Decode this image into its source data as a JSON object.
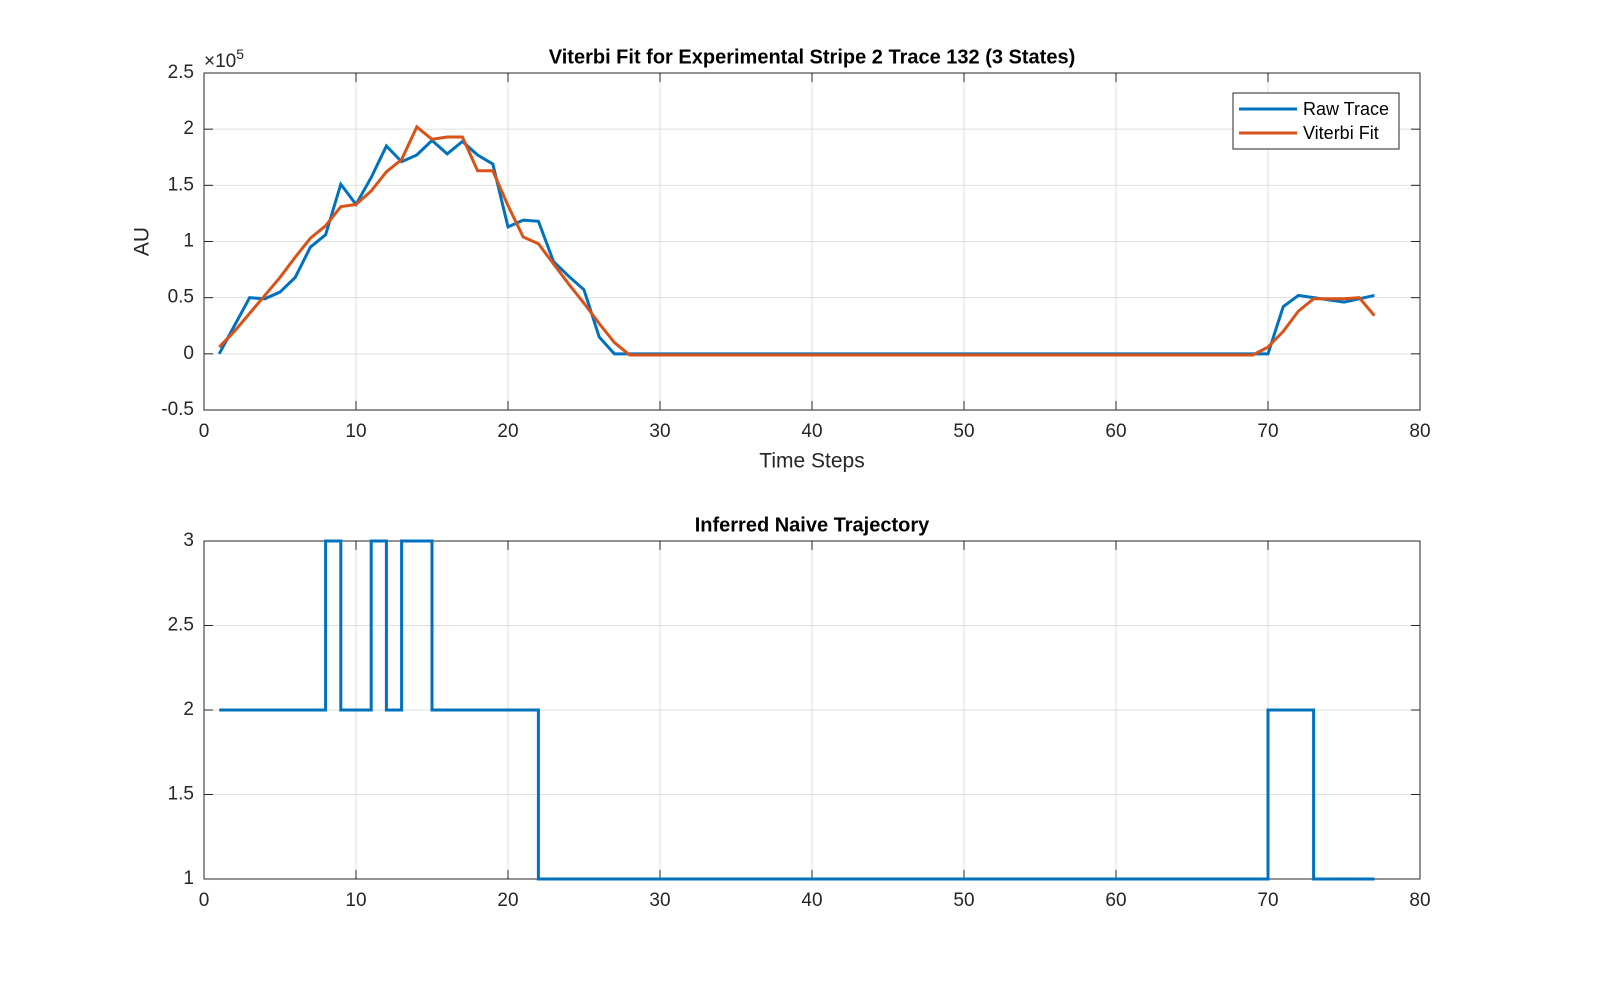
{
  "chart_data": [
    {
      "type": "line",
      "title": "Viterbi Fit for Experimental Stripe 2 Trace 132 (3 States)",
      "x_label": "Time Steps",
      "y_label": "AU",
      "y_multiplier": {
        "base": "×10",
        "power": "5"
      },
      "x": [
        1,
        2,
        3,
        4,
        5,
        6,
        7,
        8,
        9,
        10,
        11,
        12,
        13,
        14,
        15,
        16,
        17,
        18,
        19,
        20,
        21,
        22,
        23,
        24,
        25,
        26,
        27,
        28,
        29,
        30,
        31,
        32,
        33,
        34,
        35,
        36,
        37,
        38,
        39,
        40,
        41,
        42,
        43,
        44,
        45,
        46,
        47,
        48,
        49,
        50,
        51,
        52,
        53,
        54,
        55,
        56,
        57,
        58,
        59,
        60,
        61,
        62,
        63,
        64,
        65,
        66,
        67,
        68,
        69,
        70,
        71,
        72,
        73,
        74,
        75,
        76,
        77
      ],
      "series": [
        {
          "name": "Raw Trace",
          "color": "#0072bd",
          "values": [
            0,
            25000,
            50000,
            49000,
            55000,
            68000,
            95000,
            106000,
            151000,
            133000,
            157000,
            185000,
            171000,
            177000,
            190000,
            178000,
            189000,
            177000,
            169000,
            113000,
            119000,
            118000,
            82000,
            69000,
            57000,
            15000,
            0,
            0,
            0,
            0,
            0,
            0,
            0,
            0,
            0,
            0,
            0,
            0,
            0,
            0,
            0,
            0,
            0,
            0,
            0,
            0,
            0,
            0,
            0,
            0,
            0,
            0,
            0,
            0,
            0,
            0,
            0,
            0,
            0,
            0,
            0,
            0,
            0,
            0,
            0,
            0,
            0,
            0,
            0,
            0,
            42000,
            52000,
            50000,
            48000,
            46000,
            49000,
            52000
          ]
        },
        {
          "name": "Viterbi Fit",
          "color": "#d95319",
          "values": [
            6000,
            20000,
            36000,
            52000,
            68000,
            86000,
            103000,
            114000,
            131000,
            133000,
            145000,
            162000,
            173000,
            202000,
            191000,
            193000,
            193000,
            163000,
            163000,
            132000,
            104000,
            98000,
            80000,
            62000,
            45000,
            27000,
            10000,
            -1000,
            -1000,
            -1000,
            -1000,
            -1000,
            -1000,
            -1000,
            -1000,
            -1000,
            -1000,
            -1000,
            -1000,
            -1000,
            -1000,
            -1000,
            -1000,
            -1000,
            -1000,
            -1000,
            -1000,
            -1000,
            -1000,
            -1000,
            -1000,
            -1000,
            -1000,
            -1000,
            -1000,
            -1000,
            -1000,
            -1000,
            -1000,
            -1000,
            -1000,
            -1000,
            -1000,
            -1000,
            -1000,
            -1000,
            -1000,
            -1000,
            -1000,
            6000,
            20000,
            38000,
            49000,
            49000,
            49000,
            50000,
            34000
          ]
        }
      ],
      "xlim": [
        0,
        80
      ],
      "xticks": [
        0,
        10,
        20,
        30,
        40,
        50,
        60,
        70,
        80
      ],
      "ylim": [
        -50000,
        250000
      ],
      "yticks": [
        {
          "value": -50000,
          "label": "-0.5"
        },
        {
          "value": 0,
          "label": "0"
        },
        {
          "value": 50000,
          "label": "0.5"
        },
        {
          "value": 100000,
          "label": "1"
        },
        {
          "value": 150000,
          "label": "1.5"
        },
        {
          "value": 200000,
          "label": "2"
        },
        {
          "value": 250000,
          "label": "2.5"
        }
      ],
      "grid": true,
      "legend": "top-right"
    },
    {
      "type": "stairs",
      "title": "Inferred Naive Trajectory",
      "x": [
        1,
        2,
        3,
        4,
        5,
        6,
        7,
        8,
        9,
        10,
        11,
        12,
        13,
        14,
        15,
        16,
        17,
        18,
        19,
        20,
        21,
        22,
        23,
        24,
        25,
        26,
        27,
        28,
        29,
        30,
        31,
        32,
        33,
        34,
        35,
        36,
        37,
        38,
        39,
        40,
        41,
        42,
        43,
        44,
        45,
        46,
        47,
        48,
        49,
        50,
        51,
        52,
        53,
        54,
        55,
        56,
        57,
        58,
        59,
        60,
        61,
        62,
        63,
        64,
        65,
        66,
        67,
        68,
        69,
        70,
        71,
        72,
        73,
        74,
        75,
        76,
        77
      ],
      "series": [
        {
          "color": "#0072bd",
          "values": [
            2,
            2,
            2,
            2,
            2,
            2,
            2,
            3,
            2,
            2,
            3,
            2,
            3,
            3,
            2,
            2,
            2,
            2,
            2,
            2,
            2,
            1,
            1,
            1,
            1,
            1,
            1,
            1,
            1,
            1,
            1,
            1,
            1,
            1,
            1,
            1,
            1,
            1,
            1,
            1,
            1,
            1,
            1,
            1,
            1,
            1,
            1,
            1,
            1,
            1,
            1,
            1,
            1,
            1,
            1,
            1,
            1,
            1,
            1,
            1,
            1,
            1,
            1,
            1,
            1,
            1,
            1,
            1,
            1,
            2,
            2,
            2,
            1,
            1,
            1,
            1,
            1
          ]
        }
      ],
      "xlim": [
        0,
        80
      ],
      "xticks": [
        0,
        10,
        20,
        30,
        40,
        50,
        60,
        70,
        80
      ],
      "ylim": [
        1,
        3
      ],
      "yticks": [
        1,
        1.5,
        2,
        2.5,
        3
      ],
      "grid": true
    }
  ]
}
